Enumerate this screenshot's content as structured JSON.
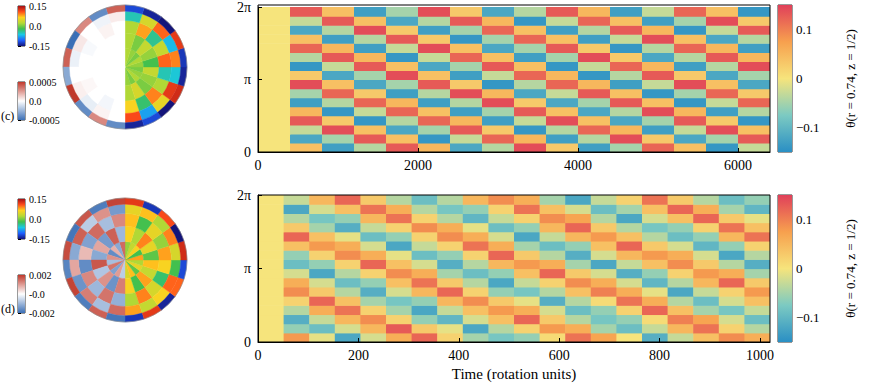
{
  "chart_data": [
    {
      "type": "disk",
      "label": "(c)",
      "r_edges": [
        0,
        0.3,
        0.55,
        0.75,
        0.9,
        1
      ],
      "halves": [
        {
          "theta_range": [
            -90,
            90
          ],
          "colorbar": {
            "range": [
              -0.15,
              0.15
            ],
            "ticks": [
              0.15,
              {
                "value": 0,
                "label": "0.0"
              },
              -0.15
            ]
          },
          "cells": [
            [
              0.01,
              0,
              0.02,
              0.01,
              0,
              0.01,
              0.02,
              0,
              0.01,
              0.02
            ],
            [
              0.02,
              0.04,
              0,
              0.01,
              0.03,
              -0.02,
              0.01,
              0.03,
              0,
              0.02
            ],
            [
              0.06,
              -0.03,
              0.09,
              0.02,
              -0.05,
              0.1,
              0.03,
              -0.04,
              0.08,
              0.02
            ],
            [
              0.11,
              -0.08,
              0.05,
              0.12,
              -0.06,
              0.09,
              -0.07,
              0.1,
              0.04,
              -0.05
            ],
            [
              -0.14,
              -0.12,
              -0.15,
              0.13,
              -0.14,
              -0.13,
              0.12,
              -0.15,
              -0.14,
              -0.12
            ]
          ]
        },
        {
          "theta_range": [
            90,
            270
          ],
          "colorbar": {
            "range": [
              -0.0005,
              0.0005
            ],
            "ticks": [
              0.0005,
              {
                "value": 0,
                "label": "0.0"
              },
              -0.0005
            ]
          },
          "cells": [
            [
              0,
              0,
              0,
              0,
              0,
              0,
              0,
              0,
              0,
              0
            ],
            [
              0,
              0,
              0,
              0,
              0,
              0,
              0,
              0,
              0,
              0
            ],
            [
              0,
              3e-05,
              0,
              -2e-05,
              0,
              0,
              2e-05,
              0,
              -3e-05,
              0
            ],
            [
              5e-05,
              -4e-05,
              0,
              6e-05,
              -5e-05,
              0,
              4e-05,
              -6e-05,
              3e-05,
              0
            ],
            [
              0.0004,
              -0.0004,
              0.0003,
              -0.0005,
              0.0004,
              -0.0003,
              0.0005,
              -0.0004,
              0.0003,
              -0.0004
            ]
          ]
        }
      ]
    },
    {
      "type": "disk",
      "label": "(d)",
      "r_edges": [
        0,
        0.3,
        0.55,
        0.75,
        0.9,
        1
      ],
      "halves": [
        {
          "theta_range": [
            -90,
            90
          ],
          "colorbar": {
            "range": [
              -0.15,
              0.15
            ],
            "ticks": [
              0.15,
              {
                "value": 0,
                "label": "0.0"
              },
              -0.15
            ]
          },
          "cells": [
            [
              0.04,
              0.07,
              -0.01,
              0.05,
              0.02,
              0.08,
              -0.02,
              0.06,
              0.03,
              0.01
            ],
            [
              0.06,
              -0.02,
              0.08,
              0.03,
              0.07,
              -0.01,
              0.05,
              0.09,
              0.02,
              0.06
            ],
            [
              0.02,
              0.09,
              0.04,
              -0.03,
              0.06,
              0.08,
              0.01,
              0.05,
              -0.02,
              0.07
            ],
            [
              0.08,
              0.03,
              0.06,
              0.1,
              -0.02,
              0.04,
              0.09,
              0.02,
              0.07,
              0.05
            ],
            [
              -0.13,
              0.12,
              -0.14,
              0.1,
              -0.12,
              0.13,
              -0.15,
              0.11,
              -0.13,
              0.12
            ]
          ]
        },
        {
          "theta_range": [
            90,
            270
          ],
          "colorbar": {
            "range": [
              -0.002,
              0.002
            ],
            "ticks": [
              0.002,
              {
                "value": 0,
                "label": "-0.0"
              },
              -0.002
            ]
          },
          "cells": [
            [
              0.0015,
              -0.0012,
              0.0008,
              -0.0016,
              0.0011,
              -0.0009,
              0.0014,
              -0.0013,
              0.001,
              -0.0007
            ],
            [
              -0.001,
              0.0016,
              -0.0014,
              0.0009,
              -0.0012,
              0.0017,
              -0.0008,
              0.0011,
              -0.0015,
              0.0013
            ],
            [
              0.0012,
              -0.0009,
              0.0015,
              -0.0013,
              0.0007,
              -0.0016,
              0.0012,
              -0.001,
              0.0014,
              -0.0011
            ],
            [
              -0.0014,
              0.0011,
              -0.0007,
              0.0016,
              -0.0012,
              0.0009,
              -0.0015,
              0.0013,
              -0.0009,
              0.0015
            ],
            [
              0.0019,
              -0.0018,
              0.0017,
              -0.0019,
              0.0018,
              -0.0017,
              0.0019,
              -0.0018,
              0.0016,
              -0.0019
            ]
          ]
        }
      ]
    },
    {
      "type": "heatmap",
      "x_edges": [
        0,
        400,
        800,
        1200,
        1600,
        2000,
        2400,
        2800,
        3200,
        3600,
        4000,
        4400,
        4800,
        5200,
        5600,
        6000,
        6400
      ],
      "y_edges": [
        0,
        0.3927,
        0.7854,
        1.1781,
        1.5708,
        1.9635,
        2.3562,
        2.7489,
        3.1416,
        3.5343,
        3.927,
        4.3197,
        4.7124,
        5.1051,
        5.4978,
        5.8905,
        6.2832
      ],
      "xlim": [
        0,
        6400
      ],
      "ylim": [
        0,
        6.2832
      ],
      "xticks": [
        0,
        2000,
        4000,
        6000
      ],
      "yticks": [
        0,
        {
          "value": 3.1416,
          "label": "π"
        },
        {
          "value": 6.2832,
          "label": "2π"
        }
      ],
      "cells": [
        [
          0,
          0.04,
          -0.13,
          -0.04,
          0.13,
          0.05,
          -0.12,
          -0.04,
          0.14,
          0.03,
          -0.13,
          -0.05,
          0.12,
          0.04,
          -0.14,
          -0.03
        ],
        [
          0,
          -0.12,
          -0.05,
          0.13,
          0.04,
          -0.14,
          -0.03,
          0.12,
          0.05,
          -0.13,
          -0.04,
          0.14,
          0.03,
          -0.12,
          -0.05,
          0.13
        ],
        [
          0,
          -0.03,
          0.14,
          0.04,
          -0.12,
          -0.05,
          0.13,
          0.03,
          -0.14,
          -0.04,
          0.12,
          0.05,
          -0.13,
          -0.03,
          0.14,
          0.04
        ],
        [
          0,
          0.13,
          0.03,
          -0.14,
          -0.04,
          0.12,
          0.05,
          -0.13,
          -0.03,
          0.14,
          0.04,
          -0.12,
          -0.05,
          0.13,
          0.03,
          -0.14
        ],
        [
          0,
          0.05,
          -0.14,
          -0.03,
          0.12,
          0.04,
          -0.13,
          -0.05,
          0.13,
          0.04,
          -0.12,
          -0.04,
          0.14,
          0.05,
          -0.13,
          -0.04
        ],
        [
          0,
          -0.13,
          -0.04,
          0.12,
          0.05,
          -0.13,
          -0.04,
          0.14,
          0.03,
          -0.12,
          -0.05,
          0.13,
          0.04,
          -0.14,
          -0.03,
          0.12
        ],
        [
          0,
          -0.05,
          0.12,
          0.03,
          -0.13,
          -0.04,
          0.14,
          0.05,
          -0.12,
          -0.03,
          0.13,
          0.04,
          -0.14,
          -0.05,
          0.12,
          0.03
        ],
        [
          0,
          0.14,
          0.04,
          -0.12,
          -0.05,
          0.13,
          0.03,
          -0.14,
          -0.04,
          0.12,
          0.05,
          -0.13,
          -0.03,
          0.14,
          0.04,
          -0.12
        ],
        [
          0,
          0.03,
          -0.12,
          -0.05,
          0.14,
          0.04,
          -0.13,
          -0.03,
          0.12,
          0.05,
          -0.14,
          -0.04,
          0.13,
          0.03,
          -0.12,
          -0.05
        ],
        [
          0,
          -0.14,
          -0.03,
          0.13,
          0.04,
          -0.12,
          -0.05,
          0.13,
          0.04,
          -0.14,
          -0.03,
          0.12,
          0.05,
          -0.13,
          -0.04,
          0.14
        ],
        [
          0,
          -0.04,
          0.13,
          0.05,
          -0.14,
          -0.03,
          0.12,
          0.04,
          -0.13,
          -0.05,
          0.14,
          0.03,
          -0.12,
          -0.04,
          0.13,
          0.05
        ],
        [
          0,
          0.12,
          0.05,
          -0.13,
          -0.03,
          0.14,
          0.04,
          -0.12,
          -0.05,
          0.13,
          0.03,
          -0.14,
          -0.04,
          0.12,
          0.05,
          -0.13
        ],
        [
          0,
          0.04,
          -0.13,
          -0.04,
          0.13,
          0.03,
          -0.14,
          -0.05,
          0.12,
          0.04,
          -0.13,
          -0.03,
          0.14,
          0.04,
          -0.12,
          -0.04
        ],
        [
          0,
          -0.12,
          -0.04,
          0.14,
          0.03,
          -0.13,
          -0.05,
          0.12,
          0.04,
          -0.13,
          -0.04,
          0.13,
          0.05,
          -0.14,
          -0.03,
          0.13
        ],
        [
          0,
          -0.03,
          0.13,
          0.04,
          -0.12,
          -0.04,
          0.13,
          0.05,
          -0.14,
          -0.03,
          0.12,
          0.04,
          -0.13,
          -0.05,
          0.14,
          0.03
        ],
        [
          0,
          0.13,
          0.04,
          -0.13,
          -0.05,
          0.14,
          0.03,
          -0.12,
          -0.04,
          0.13,
          0.05,
          -0.13,
          -0.03,
          0.12,
          0.04,
          -0.14
        ]
      ],
      "colorbar": {
        "title": "θ(r = 0.74, z = 1/2)",
        "range": [
          -0.15,
          0.15
        ],
        "ticks": [
          0.1,
          0,
          {
            "value": -0.1,
            "label": "−0.1"
          }
        ]
      }
    },
    {
      "type": "heatmap",
      "xlabel": "Time (rotation units)",
      "x_edges": [
        0,
        51,
        102,
        153,
        204,
        255,
        306,
        357,
        408,
        459,
        510,
        561,
        612,
        663,
        714,
        765,
        816,
        867,
        918,
        969,
        1020
      ],
      "y_edges": [
        0,
        0.3927,
        0.7854,
        1.1781,
        1.5708,
        1.9635,
        2.3562,
        2.7489,
        3.1416,
        3.5343,
        3.927,
        4.3197,
        4.7124,
        5.1051,
        5.4978,
        5.8905,
        6.2832
      ],
      "xlim": [
        0,
        1020
      ],
      "ylim": [
        0,
        6.2832
      ],
      "xticks": [
        0,
        200,
        400,
        600,
        800,
        1000
      ],
      "yticks": [
        0,
        {
          "value": 3.1416,
          "label": "π"
        },
        {
          "value": 6.2832,
          "label": "2π"
        }
      ],
      "cells": [
        [
          0,
          0.08,
          -0.01,
          -0.12,
          -0.02,
          0.06,
          0.12,
          0.02,
          -0.05,
          -0.08,
          -0.06,
          0.01,
          0.11,
          0.07,
          0,
          -0.11,
          -0.03,
          0.04,
          0.09,
          0.06
        ],
        [
          0,
          -0.06,
          -0.09,
          -0.02,
          0.05,
          0.13,
          0.03,
          -0.01,
          -0.12,
          -0.04,
          0.02,
          0.08,
          0.06,
          -0.05,
          -0.09,
          -0.03,
          0.05,
          0.11,
          0.02,
          -0.04
        ],
        [
          0,
          -0.11,
          -0.03,
          0.05,
          0.09,
          0.02,
          -0.06,
          -0.1,
          -0.02,
          0.04,
          0.12,
          0.03,
          -0.04,
          -0.08,
          -0.06,
          0.01,
          0.1,
          0.07,
          -0.02,
          -0.09
        ],
        [
          0,
          -0.04,
          0.06,
          0.11,
          0.02,
          -0.05,
          -0.12,
          -0.03,
          0.04,
          0.08,
          0.06,
          -0.02,
          -0.09,
          -0.06,
          0.02,
          0.12,
          0.04,
          -0.05,
          -0.08,
          -0.03
        ],
        [
          0,
          0.02,
          0.12,
          0.04,
          -0.05,
          -0.08,
          -0.06,
          0.05,
          0.09,
          0.03,
          -0.01,
          -0.11,
          -0.04,
          0.01,
          0.11,
          0.06,
          -0.04,
          -0.09,
          -0.02,
          0.04
        ],
        [
          0,
          0.09,
          0.03,
          -0.04,
          -0.11,
          -0.02,
          0.05,
          0.12,
          0.02,
          -0.06,
          -0.08,
          -0.04,
          0.04,
          0.1,
          0.06,
          -0.01,
          -0.12,
          -0.03,
          0.02,
          0.08
        ],
        [
          0,
          0.06,
          -0.02,
          -0.09,
          -0.06,
          0.04,
          0.11,
          0.03,
          -0.04,
          -0.12,
          -0.03,
          0.02,
          0.09,
          0.06,
          -0.02,
          -0.1,
          -0.04,
          0.05,
          0.12,
          0.03
        ],
        [
          0,
          -0.02,
          -0.12,
          -0.04,
          0.02,
          0.09,
          0.06,
          -0.05,
          -0.09,
          -0.06,
          0.04,
          0.12,
          0.03,
          -0.02,
          -0.11,
          -0.06,
          0.02,
          0.08,
          0.06,
          -0.05
        ],
        [
          0,
          -0.09,
          -0.06,
          0.02,
          0.12,
          0.04,
          -0.02,
          -0.11,
          -0.04,
          0.05,
          0.08,
          0.06,
          -0.05,
          -0.12,
          -0.03,
          0.04,
          0.09,
          0.03,
          -0.04,
          -0.11
        ],
        [
          0,
          -0.06,
          0.02,
          0.09,
          0.06,
          -0.01,
          -0.09,
          -0.06,
          0.02,
          0.12,
          0.03,
          -0.04,
          -0.11,
          -0.02,
          0.05,
          0.08,
          0.06,
          -0.02,
          -0.12,
          -0.04
        ],
        [
          0,
          0.04,
          0.08,
          0.06,
          -0.02,
          -0.12,
          -0.03,
          0.02,
          0.11,
          0.06,
          -0.05,
          -0.09,
          -0.06,
          0.04,
          0.12,
          0.03,
          -0.02,
          -0.1,
          -0.06,
          0.02
        ],
        [
          0,
          0.12,
          0.04,
          -0.01,
          -0.09,
          -0.06,
          0.02,
          0.09,
          0.06,
          -0.02,
          -0.12,
          -0.03,
          0.05,
          0.08,
          0.04,
          -0.04,
          -0.09,
          -0.06,
          0.05,
          0.11
        ],
        [
          0,
          0.03,
          -0.05,
          -0.11,
          -0.03,
          0.02,
          0.09,
          0.06,
          -0.01,
          -0.09,
          -0.06,
          0.05,
          0.12,
          0.03,
          -0.04,
          -0.08,
          -0.06,
          0.02,
          0.11,
          0.04
        ],
        [
          0,
          -0.04,
          -0.08,
          -0.06,
          0.05,
          0.11,
          0.02,
          -0.04,
          -0.1,
          -0.03,
          0.02,
          0.09,
          0.07,
          -0.04,
          -0.12,
          -0.02,
          0.04,
          0.12,
          0.03,
          -0.01
        ],
        [
          0,
          -0.12,
          -0.02,
          0.04,
          0.11,
          0.06,
          -0.04,
          -0.08,
          -0.06,
          0.02,
          0.11,
          0.04,
          -0.02,
          -0.09,
          -0.05,
          0.04,
          0.12,
          0.06,
          -0.05,
          -0.1
        ],
        [
          0,
          -0.03,
          0.05,
          0.12,
          0.03,
          -0.04,
          -0.09,
          -0.04,
          0.05,
          0.09,
          0.06,
          -0.05,
          -0.12,
          -0.03,
          0.02,
          0.11,
          0.03,
          -0.04,
          -0.09,
          -0.06
        ]
      ],
      "colorbar": {
        "title": "θ(r = 0.74, z = 1/2)",
        "range": [
          -0.15,
          0.15
        ],
        "ticks": [
          0.1,
          0,
          {
            "value": -0.1,
            "label": "−0.1"
          }
        ]
      }
    }
  ]
}
